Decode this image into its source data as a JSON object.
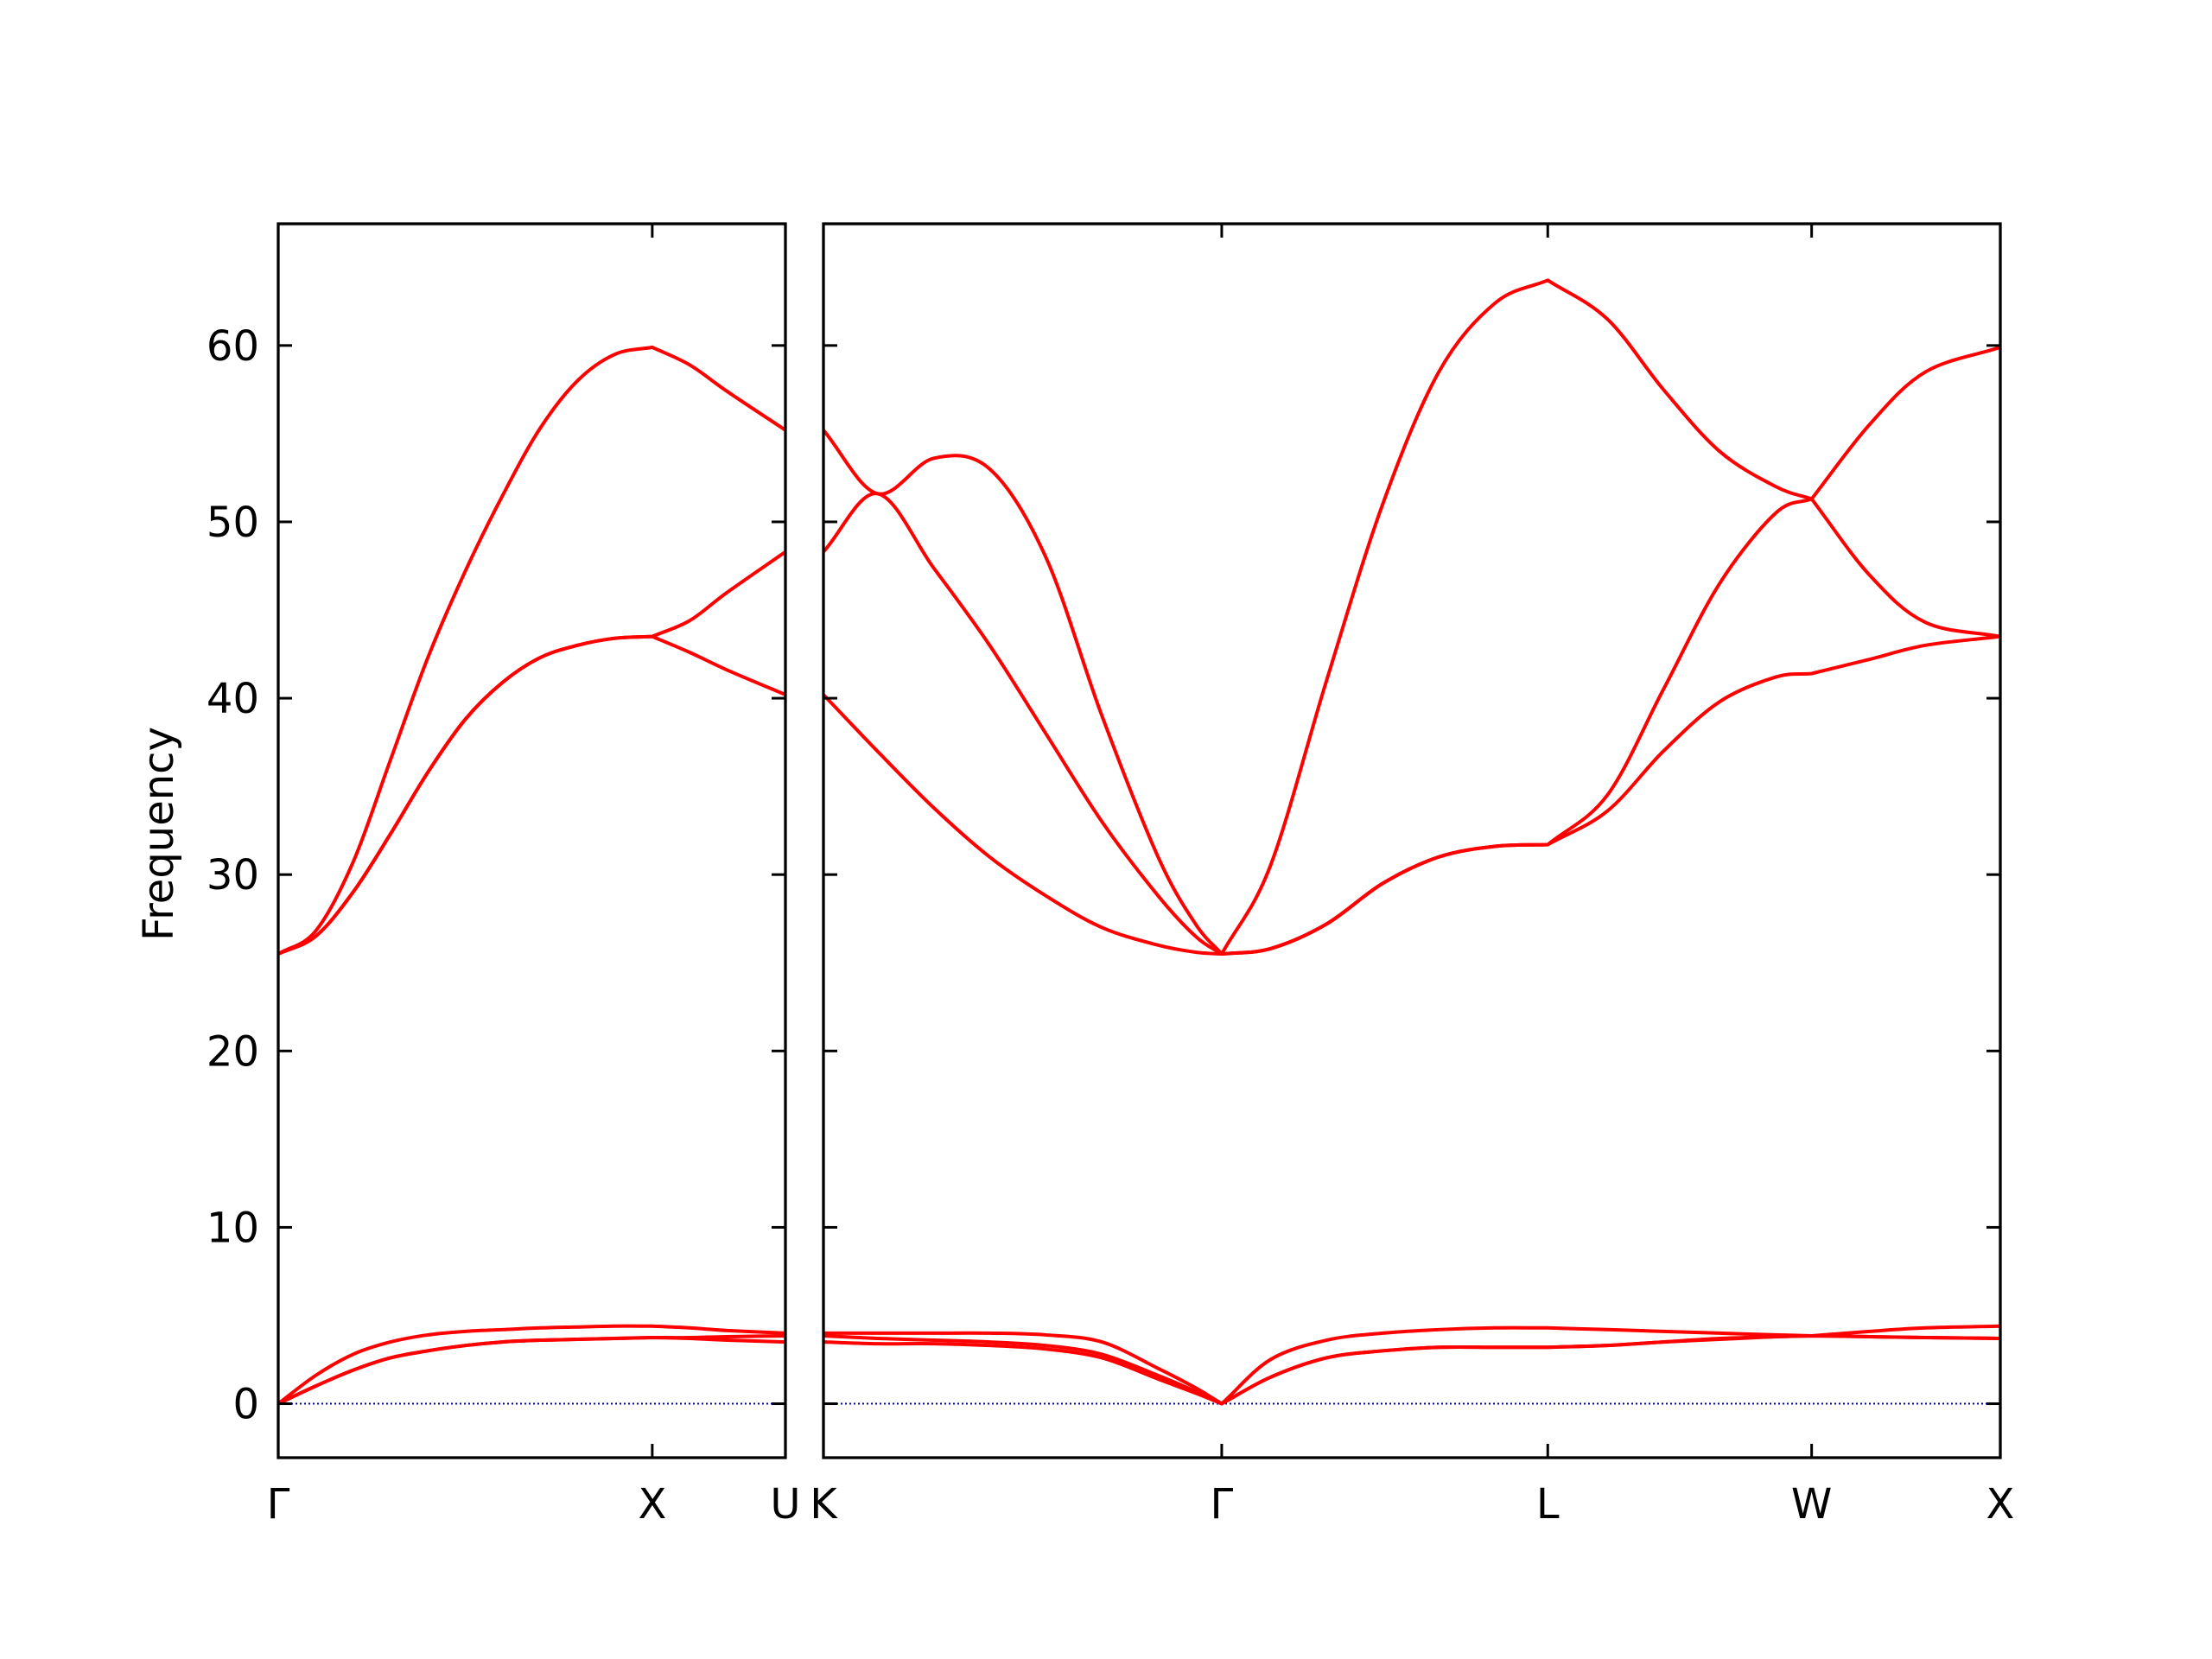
{
  "chart_data": [
    {
      "type": "line",
      "ylabel": "Frequency",
      "show_ytick_labels": true,
      "x": [
        0,
        0.1,
        0.2,
        0.3,
        0.4,
        0.5,
        0.6,
        0.7,
        0.8,
        0.9,
        1.0,
        1.1,
        1.2,
        1.356
      ],
      "series": [
        {
          "color": "#ff0000",
          "values": [
            25.5,
            26.8,
            30.7,
            36.5,
            42.3,
            47.2,
            51.5,
            55.3,
            58.0,
            59.5,
            59.9,
            58.9,
            57.4,
            55.2
          ]
        },
        {
          "color": "#ff0000",
          "values": [
            25.5,
            26.5,
            29.0,
            32.3,
            35.8,
            38.8,
            40.9,
            42.3,
            43.0,
            43.4,
            43.5,
            44.4,
            46.0,
            48.3
          ]
        },
        {
          "color": "#ff0000",
          "values": [
            25.5,
            26.5,
            29.0,
            32.3,
            35.8,
            38.8,
            40.9,
            42.3,
            43.0,
            43.4,
            43.5,
            42.6,
            41.6,
            40.2
          ]
        },
        {
          "color": "#ff0000",
          "values": [
            0,
            1.6,
            2.8,
            3.5,
            3.9,
            4.1,
            4.2,
            4.3,
            4.35,
            4.4,
            4.4,
            4.3,
            4.15,
            4.0
          ]
        },
        {
          "color": "#ff0000",
          "values": [
            0,
            1.0,
            1.9,
            2.6,
            3.0,
            3.3,
            3.5,
            3.6,
            3.65,
            3.7,
            3.75,
            3.75,
            3.8,
            3.85
          ]
        },
        {
          "color": "#ff0000",
          "values": [
            0,
            1.0,
            1.9,
            2.6,
            3.0,
            3.3,
            3.5,
            3.6,
            3.65,
            3.7,
            3.75,
            3.7,
            3.6,
            3.5
          ]
        }
      ],
      "xlim": [
        0,
        1.356
      ],
      "xticks": [
        {
          "value": 0,
          "label": "Γ"
        },
        {
          "value": 1.0,
          "label": "X"
        },
        {
          "value": 1.356,
          "label": "U"
        }
      ],
      "ylim": [
        -3.06,
        66.9
      ],
      "yticks": [
        0,
        10,
        20,
        30,
        40,
        50,
        60
      ],
      "hline": 0,
      "hline_color": "#0000aa"
    },
    {
      "type": "line",
      "show_ytick_labels": false,
      "x": [
        1.356,
        1.5,
        1.65,
        1.8,
        1.95,
        2.1,
        2.25,
        2.35,
        2.42,
        2.55,
        2.7,
        2.85,
        3.0,
        3.15,
        3.291,
        3.45,
        3.6,
        3.75,
        3.9,
        3.996,
        4.15,
        4.3,
        4.5
      ],
      "series": [
        {
          "color": "#ff0000",
          "values": [
            55.2,
            51.6,
            53.6,
            53.0,
            48.0,
            39.0,
            31.0,
            27.2,
            25.5,
            30.5,
            41.0,
            51.0,
            58.5,
            62.4,
            63.7,
            61.5,
            57.5,
            54.0,
            52.0,
            51.3,
            55.5,
            58.5,
            59.9
          ]
        },
        {
          "color": "#ff0000",
          "values": [
            48.3,
            51.6,
            47.4,
            43.0,
            38.0,
            33.0,
            28.8,
            26.5,
            25.5,
            25.8,
            27.2,
            29.5,
            31.0,
            31.6,
            31.7,
            34.5,
            40.5,
            46.5,
            50.5,
            51.3,
            47.0,
            44.3,
            43.5
          ]
        },
        {
          "color": "#ff0000",
          "values": [
            40.2,
            37.0,
            33.8,
            31.0,
            28.8,
            27.0,
            26.0,
            25.6,
            25.5,
            25.8,
            27.2,
            29.5,
            31.0,
            31.6,
            31.7,
            33.6,
            37.0,
            39.8,
            41.2,
            41.4,
            42.2,
            43.0,
            43.5
          ]
        },
        {
          "color": "#ff0000",
          "values": [
            4.0,
            4.0,
            4.0,
            4.0,
            3.9,
            3.5,
            2.0,
            0.9,
            0,
            2.5,
            3.6,
            4.0,
            4.2,
            4.3,
            4.3,
            4.2,
            4.1,
            4.0,
            3.9,
            3.85,
            4.1,
            4.3,
            4.4
          ]
        },
        {
          "color": "#ff0000",
          "values": [
            3.85,
            3.7,
            3.6,
            3.5,
            3.3,
            2.8,
            1.6,
            0.7,
            0,
            1.5,
            2.6,
            3.0,
            3.2,
            3.2,
            3.2,
            3.3,
            3.5,
            3.65,
            3.8,
            3.85,
            3.8,
            3.75,
            3.7
          ]
        },
        {
          "color": "#ff0000",
          "values": [
            3.5,
            3.4,
            3.4,
            3.3,
            3.1,
            2.6,
            1.4,
            0.6,
            0,
            1.5,
            2.6,
            3.0,
            3.2,
            3.2,
            3.2,
            3.3,
            3.5,
            3.7,
            3.8,
            3.85,
            3.8,
            3.75,
            3.7
          ]
        }
      ],
      "xlim": [
        1.356,
        4.5
      ],
      "xticks": [
        {
          "value": 1.356,
          "label": "K"
        },
        {
          "value": 2.42,
          "label": "Γ"
        },
        {
          "value": 3.291,
          "label": "L"
        },
        {
          "value": 3.996,
          "label": "W"
        },
        {
          "value": 4.5,
          "label": "X"
        }
      ],
      "ylim": [
        -3.06,
        66.9
      ],
      "yticks": [
        0,
        10,
        20,
        30,
        40,
        50,
        60
      ],
      "hline": 0,
      "hline_color": "#0000aa"
    }
  ]
}
